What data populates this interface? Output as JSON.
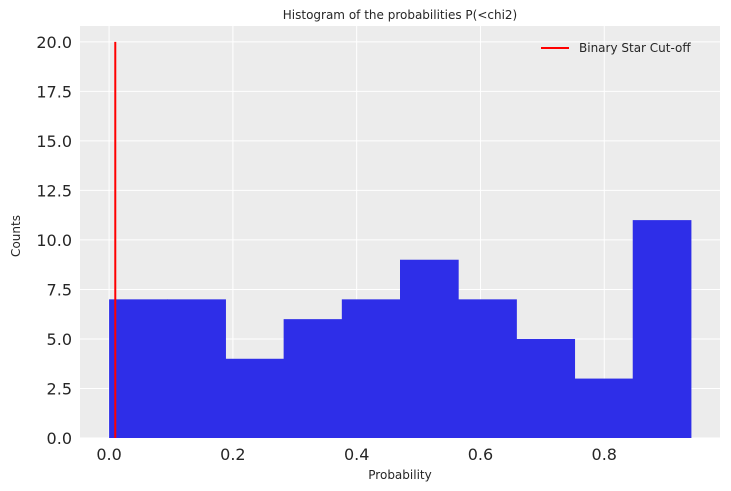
{
  "chart_data": {
    "type": "bar",
    "title": "Histogram of the probabilities P(<chi2)",
    "xlabel": "Probability",
    "ylabel": "Counts",
    "bins": [
      {
        "start": 0.0,
        "end": 0.094,
        "count": 7
      },
      {
        "start": 0.094,
        "end": 0.188,
        "count": 7
      },
      {
        "start": 0.188,
        "end": 0.282,
        "count": 4
      },
      {
        "start": 0.282,
        "end": 0.376,
        "count": 6
      },
      {
        "start": 0.376,
        "end": 0.47,
        "count": 7
      },
      {
        "start": 0.47,
        "end": 0.564,
        "count": 9
      },
      {
        "start": 0.564,
        "end": 0.658,
        "count": 7
      },
      {
        "start": 0.658,
        "end": 0.752,
        "count": 5
      },
      {
        "start": 0.752,
        "end": 0.846,
        "count": 3
      },
      {
        "start": 0.846,
        "end": 0.94,
        "count": 11
      }
    ],
    "cutoff_line": {
      "name": "Binary Star Cut-off",
      "x": 0.01,
      "y_range": [
        0,
        20
      ]
    },
    "xlim": [
      -0.047,
      0.987
    ],
    "ylim": [
      0,
      20.8
    ],
    "x_ticks": [
      "0.0",
      "0.2",
      "0.4",
      "0.6",
      "0.8"
    ],
    "y_ticks": [
      "0.0",
      "2.5",
      "5.0",
      "7.5",
      "10.0",
      "12.5",
      "15.0",
      "17.5",
      "20.0"
    ],
    "grid": true,
    "legend_position": "top-right",
    "bar_color": "#2e2ee8",
    "cutoff_color": "#ff0000",
    "background_color": "#ececec",
    "grid_color": "#ffffff"
  }
}
